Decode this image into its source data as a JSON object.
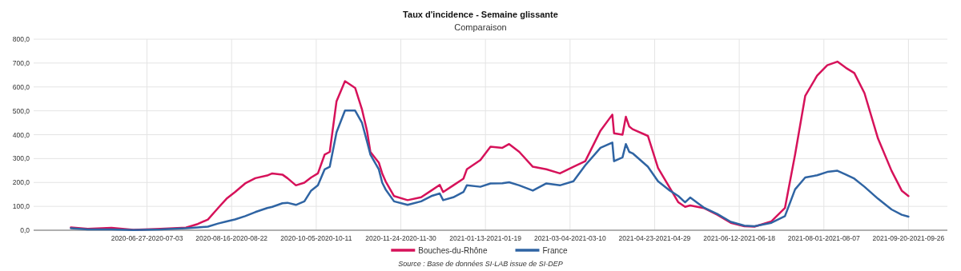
{
  "chart_data": {
    "type": "line",
    "title": "Taux d'incidence - Semaine glissante",
    "subtitle": "Comparaison",
    "annotations": [
      "Source : Base de données SI-LAB issue de SI-DEP"
    ],
    "x": [
      "2020-05-13",
      "2020-05-23",
      "2020-06-06",
      "2020-06-19",
      "2020-07-05",
      "2020-07-20",
      "2020-07-27",
      "2020-08-02",
      "2020-08-08",
      "2020-08-13",
      "2020-08-18",
      "2020-08-24",
      "2020-08-30",
      "2020-09-06",
      "2020-09-09",
      "2020-09-15",
      "2020-09-18",
      "2020-09-23",
      "2020-09-28",
      "2020-10-02",
      "2020-10-06",
      "2020-10-10",
      "2020-10-13",
      "2020-10-17",
      "2020-10-22",
      "2020-10-28",
      "2020-11-01",
      "2020-11-04",
      "2020-11-06",
      "2020-11-11",
      "2020-11-13",
      "2020-11-15",
      "2020-11-20",
      "2020-11-28",
      "2020-12-06",
      "2020-12-12",
      "2020-12-17",
      "2020-12-19",
      "2020-12-25",
      "2020-12-31",
      "2021-01-02",
      "2021-01-10",
      "2021-01-16",
      "2021-01-23",
      "2021-01-27",
      "2021-02-02",
      "2021-02-10",
      "2021-02-18",
      "2021-02-26",
      "2021-03-06",
      "2021-03-13",
      "2021-03-22",
      "2021-03-29",
      "2021-03-30",
      "2021-04-04",
      "2021-04-06",
      "2021-04-08",
      "2021-04-10",
      "2021-04-19",
      "2021-04-25",
      "2021-05-02",
      "2021-05-07",
      "2021-05-11",
      "2021-05-14",
      "2021-05-22",
      "2021-05-30",
      "2021-06-07",
      "2021-06-15",
      "2021-06-21",
      "2021-07-01",
      "2021-07-09",
      "2021-07-15",
      "2021-07-21",
      "2021-07-28",
      "2021-08-03",
      "2021-08-09",
      "2021-08-14",
      "2021-08-19",
      "2021-08-25",
      "2021-09-02",
      "2021-09-10",
      "2021-09-16",
      "2021-09-20"
    ],
    "series": [
      {
        "name": "Bouches-du-Rhône",
        "color": "#d6125a",
        "values": [
          12,
          6,
          10,
          2,
          6,
          11,
          26,
          45,
          93,
          132,
          160,
          196,
          218,
          229,
          238,
          233,
          218,
          188,
          199,
          221,
          238,
          317,
          328,
          540,
          624,
          596,
          507,
          417,
          328,
          283,
          238,
          205,
          143,
          126,
          138,
          166,
          190,
          160,
          188,
          216,
          255,
          294,
          350,
          345,
          361,
          328,
          266,
          255,
          238,
          266,
          289,
          417,
          484,
          406,
          400,
          475,
          434,
          423,
          395,
          261,
          177,
          117,
          98,
          104,
          93,
          65,
          31,
          17,
          15,
          37,
          93,
          317,
          563,
          647,
          691,
          706,
          680,
          658,
          574,
          384,
          249,
          166,
          143
        ]
      },
      {
        "name": "France",
        "color": "#2f64a3",
        "values": [
          8,
          3,
          3,
          1,
          3,
          8,
          12,
          15,
          28,
          37,
          45,
          59,
          76,
          93,
          98,
          113,
          115,
          106,
          121,
          166,
          188,
          255,
          266,
          410,
          501,
          501,
          451,
          372,
          317,
          255,
          199,
          171,
          121,
          106,
          121,
          143,
          154,
          126,
          138,
          160,
          188,
          182,
          196,
          197,
          201,
          188,
          166,
          196,
          188,
          205,
          272,
          345,
          367,
          289,
          305,
          361,
          328,
          322,
          266,
          205,
          166,
          143,
          117,
          137,
          95,
          68,
          35,
          19,
          17,
          31,
          59,
          171,
          221,
          230,
          244,
          249,
          233,
          216,
          182,
          132,
          87,
          65,
          57
        ]
      }
    ],
    "xlim": [
      "2020-04-21",
      "2021-10-13"
    ],
    "xticks": [
      {
        "value": "2020-06-27",
        "label": "2020-06-27-2020-07-03"
      },
      {
        "value": "2020-08-16",
        "label": "2020-08-16-2020-08-22"
      },
      {
        "value": "2020-10-05",
        "label": "2020-10-05-2020-10-11"
      },
      {
        "value": "2020-11-24",
        "label": "2020-11-24-2020-11-30"
      },
      {
        "value": "2021-01-13",
        "label": "2021-01-13-2021-01-19"
      },
      {
        "value": "2021-03-04",
        "label": "2021-03-04-2021-03-10"
      },
      {
        "value": "2021-04-23",
        "label": "2021-04-23-2021-04-29"
      },
      {
        "value": "2021-06-12",
        "label": "2021-06-12-2021-06-18"
      },
      {
        "value": "2021-08-01",
        "label": "2021-08-01-2021-08-07"
      },
      {
        "value": "2021-09-20",
        "label": "2021-09-20-2021-09-26"
      }
    ],
    "ylim": [
      0,
      800
    ],
    "yticks": [
      {
        "value": 0,
        "label": "0,0"
      },
      {
        "value": 100,
        "label": "100,0"
      },
      {
        "value": 200,
        "label": "200,0"
      },
      {
        "value": 300,
        "label": "300,0"
      },
      {
        "value": 400,
        "label": "400,0"
      },
      {
        "value": 500,
        "label": "500,0"
      },
      {
        "value": 600,
        "label": "600,0"
      },
      {
        "value": 700,
        "label": "700,0"
      },
      {
        "value": 800,
        "label": "800,0"
      }
    ],
    "grid": true,
    "legend": "bottom",
    "marker": "none",
    "line_style": "solid"
  }
}
